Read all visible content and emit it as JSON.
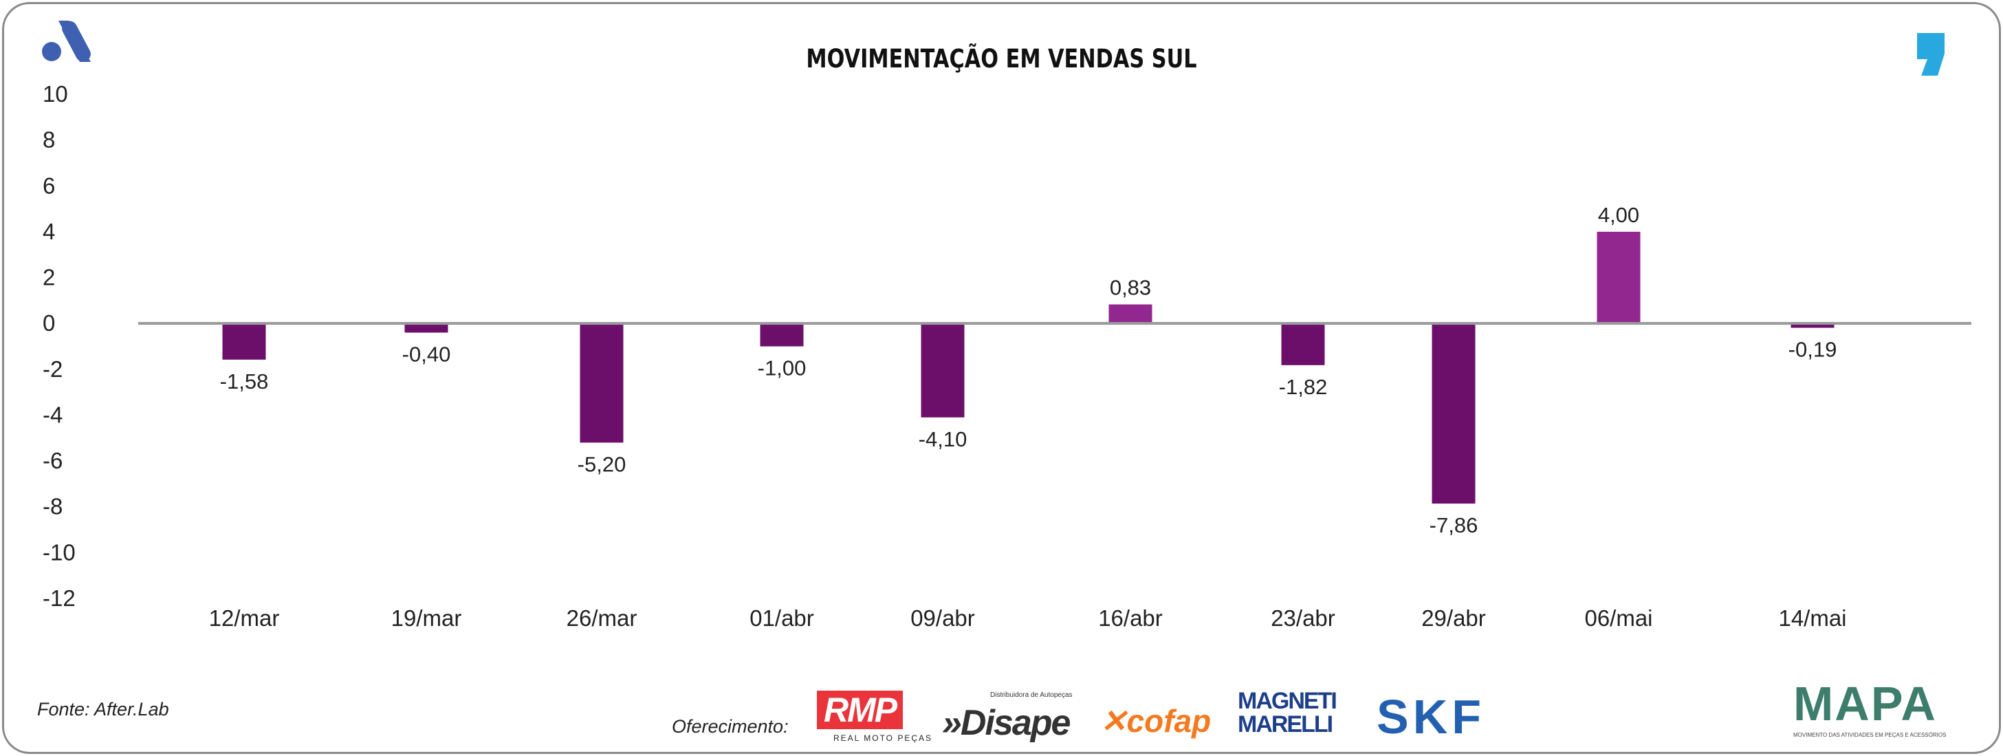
{
  "title": "MOVIMENTAÇÃO EM VENDAS SUL",
  "source": "Fonte: After.Lab",
  "sponsor_label": "Oferecimento:",
  "sponsors": {
    "rmp": "RMP",
    "rmp_sub": "REAL MOTO PEÇAS",
    "disape": "»Disape",
    "disape_sub": "Distribuidora de Autopeças",
    "cofap": "✕cofap",
    "marelli": "MAGNETI MARELLI",
    "skf": "SKF",
    "mapa": "MAPA",
    "mapa_sub": "MOVIMENTO DAS ATIVIDADES EM PEÇAS E ACESSÓRIOS"
  },
  "colors": {
    "negative": "#6b0f6b",
    "positive": "#92278f",
    "axis": "#9a9a9a",
    "brand_blue": "#3f5fb0",
    "comma_blue": "#29a8e0"
  },
  "chart_data": {
    "type": "bar",
    "title": "MOVIMENTAÇÃO EM VENDAS SUL",
    "xlabel": "",
    "ylabel": "",
    "categories": [
      "12/mar",
      "19/mar",
      "26/mar",
      "01/abr",
      "09/abr",
      "16/abr",
      "23/abr",
      "29/abr",
      "06/mai",
      "14/mai"
    ],
    "values": [
      -1.58,
      -0.4,
      -5.2,
      -1.0,
      -4.1,
      0.83,
      -1.82,
      -7.86,
      4.0,
      -0.19
    ],
    "data_labels": [
      "-1,58",
      "-0,40",
      "-5,20",
      "-1,00",
      "-4,10",
      "0,83",
      "-1,82",
      "-7,86",
      "4,00",
      "-0,19"
    ],
    "ylim": [
      -12,
      10
    ],
    "yticks": [
      10,
      8,
      6,
      4,
      2,
      0,
      -2,
      -4,
      -6,
      -8,
      -10,
      -12
    ],
    "grid": false,
    "legend": "none"
  }
}
